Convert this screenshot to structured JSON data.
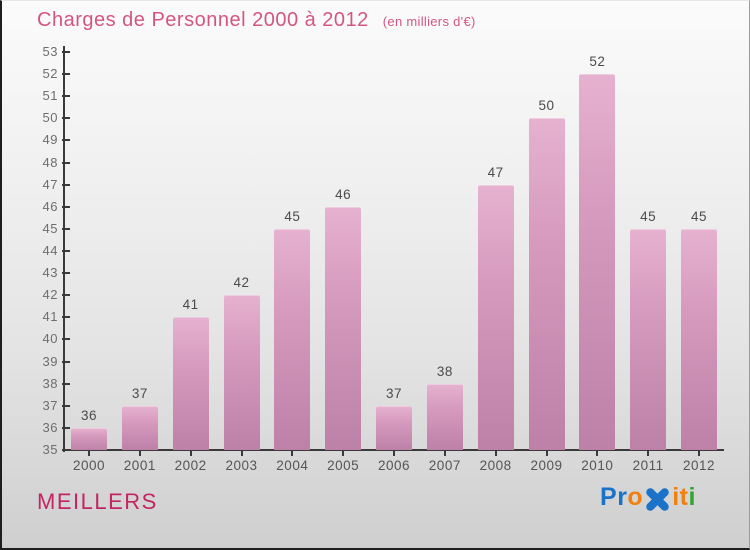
{
  "header": {
    "title": "Charges de Personnel 2000 à 2012",
    "subtitle": "(en milliers d'€)"
  },
  "chart_data": {
    "type": "bar",
    "title": "Charges de Personnel 2000 à 2012",
    "unit_note": "(en milliers d'€)",
    "categories": [
      "2000",
      "2001",
      "2002",
      "2003",
      "2004",
      "2005",
      "2006",
      "2007",
      "2008",
      "2009",
      "2010",
      "2011",
      "2012"
    ],
    "values": [
      36,
      37,
      41,
      42,
      45,
      46,
      37,
      38,
      47,
      50,
      52,
      45,
      45
    ],
    "ylabel": "",
    "xlabel": "",
    "ylim": [
      35,
      53
    ],
    "ytick_step": 1,
    "grid": false,
    "legend": false,
    "bar_color_top": "#e6b2d0",
    "bar_color_bottom": "#bd81a8",
    "value_label_color": "#4b4b4b",
    "axis_color": "#3a3a3a"
  },
  "footer": {
    "company": "MEILLERS",
    "logo": {
      "text": "Proxiti",
      "letters": [
        {
          "ch": "P",
          "color": "#1a73c9",
          "icon": false
        },
        {
          "ch": "r",
          "color": "#1a73c9",
          "icon": false
        },
        {
          "ch": "o",
          "color": "#f28011",
          "icon": false
        },
        {
          "ch": "x",
          "color": "#1a73c9",
          "icon": true
        },
        {
          "ch": "i",
          "color": "#f28011",
          "icon": false
        },
        {
          "ch": "t",
          "color": "#f28011",
          "icon": false
        },
        {
          "ch": "i",
          "color": "#31a532",
          "icon": false
        }
      ]
    }
  },
  "colors": {
    "title_pink": "#d4567f",
    "company_crimson": "#c32562",
    "background_top": "#fbfbfb",
    "background_bottom": "#cfcfcf"
  }
}
